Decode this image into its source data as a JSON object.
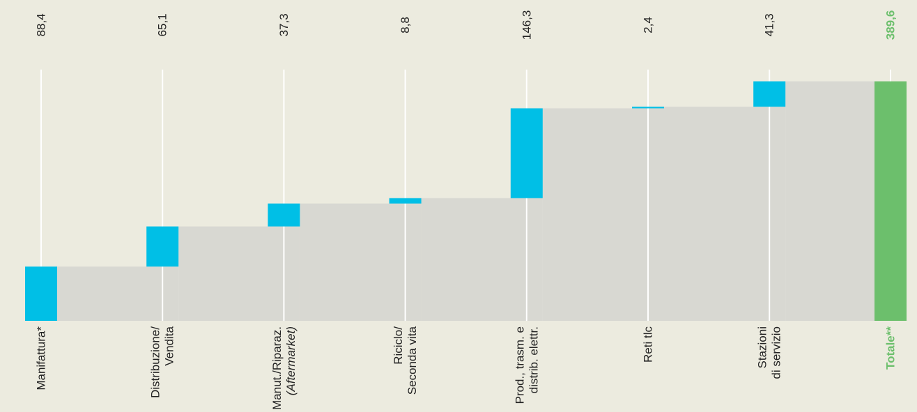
{
  "chart_data": {
    "type": "waterfall",
    "categories": [
      [
        "Manifattura*"
      ],
      [
        "Distribuzione/",
        "Vendita"
      ],
      [
        "Manut./Riparaz.",
        "(Aftermarket)"
      ],
      [
        "Riciclo/",
        "Seconda vita"
      ],
      [
        "Prod., trasm. e",
        "distrib. elettr."
      ],
      [
        "Reti tlc"
      ],
      [
        "Stazioni",
        "di servizio"
      ],
      [
        "Totale**"
      ]
    ],
    "values": [
      88.4,
      65.1,
      37.3,
      8.8,
      146.3,
      2.4,
      41.3,
      389.6
    ],
    "value_labels": [
      "88,4",
      "65,1",
      "37,3",
      "8,8",
      "146,3",
      "2,4",
      "41,3",
      "389,6"
    ],
    "color": "#00bfe6",
    "fill_color": "#d8d8d2",
    "total_color": "#6cbf6c"
  }
}
